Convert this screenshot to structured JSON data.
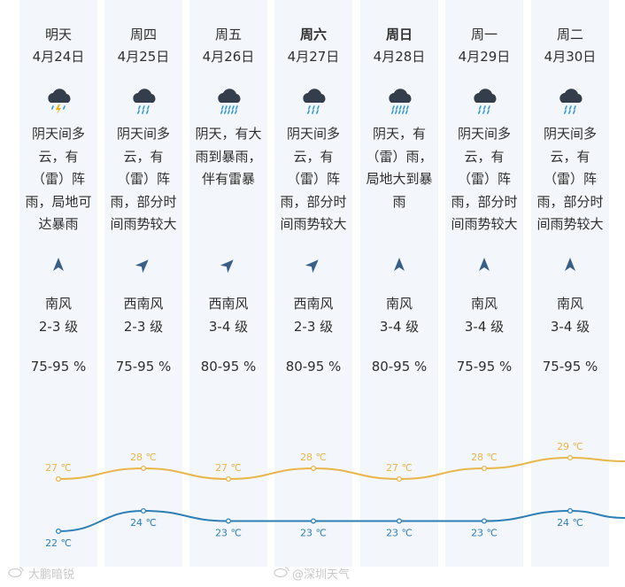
{
  "days": [
    {
      "day": "明天",
      "date": "4月24日",
      "bold": false,
      "icon": "thunder-rain-icon",
      "desc": [
        "阴天间多",
        "云，有",
        "（雷）阵",
        "雨，局地可",
        "达暴雨"
      ],
      "wind": "南风",
      "level": "2-3 级",
      "humidity": "75-95 %",
      "wind_dir": "south",
      "high": "27 ℃",
      "low": "22 ℃"
    },
    {
      "day": "周四",
      "date": "4月25日",
      "bold": false,
      "icon": "rain-icon",
      "desc": [
        "阴天间多",
        "云，有",
        "（雷）阵",
        "雨，部分时",
        "间雨势较大"
      ],
      "wind": "西南风",
      "level": "2-3 级",
      "humidity": "75-95 %",
      "wind_dir": "southwest",
      "high": "28 ℃",
      "low": "24 ℃"
    },
    {
      "day": "周五",
      "date": "4月26日",
      "bold": false,
      "icon": "heavy-rain-icon",
      "desc": [
        "阴天，有大",
        "雨到暴雨，",
        "伴有雷暴"
      ],
      "wind": "西南风",
      "level": "3-4 级",
      "humidity": "80-95 %",
      "wind_dir": "southwest",
      "high": "27 ℃",
      "low": "23 ℃"
    },
    {
      "day": "周六",
      "date": "4月27日",
      "bold": true,
      "icon": "rain-icon",
      "desc": [
        "阴天间多",
        "云，有",
        "（雷）阵",
        "雨，部分时",
        "间雨势较大"
      ],
      "wind": "西南风",
      "level": "2-3 级",
      "humidity": "80-95 %",
      "wind_dir": "southwest",
      "high": "28 ℃",
      "low": "23 ℃"
    },
    {
      "day": "周日",
      "date": "4月28日",
      "bold": true,
      "icon": "heavy-rain-icon",
      "desc": [
        "阴天，有",
        "（雷）雨，",
        "局地大到暴",
        "雨"
      ],
      "wind": "南风",
      "level": "3-4 级",
      "humidity": "80-95 %",
      "wind_dir": "south",
      "high": "27 ℃",
      "low": "23 ℃"
    },
    {
      "day": "周一",
      "date": "4月29日",
      "bold": false,
      "icon": "rain-icon",
      "desc": [
        "阴天间多",
        "云，有",
        "（雷）阵",
        "雨，部分时",
        "间雨势较大"
      ],
      "wind": "南风",
      "level": "3-4 级",
      "humidity": "75-95 %",
      "wind_dir": "south",
      "high": "28 ℃",
      "low": "23 ℃"
    },
    {
      "day": "周二",
      "date": "4月30日",
      "bold": false,
      "icon": "rain-icon",
      "desc": [
        "阴天间多",
        "云，有",
        "（雷）阵",
        "雨，部分时",
        "间雨势较大"
      ],
      "wind": "南风",
      "level": "3-4 级",
      "humidity": "75-95 %",
      "wind_dir": "south",
      "high": "29 ℃",
      "low": "24 ℃"
    }
  ],
  "high_values": [
    27,
    28,
    27,
    28,
    27,
    28,
    29
  ],
  "low_values": [
    22,
    24,
    23,
    23,
    23,
    23,
    24
  ],
  "colors": {
    "high": "#e8b64a",
    "low": "#2d7fb6",
    "column": "#f3f6fa",
    "arrow": "#3a5f86",
    "cloud": "#333d4c",
    "drop": "#2e9ad6"
  },
  "watermark": {
    "left": "大鹏暗锐",
    "right": "@深圳天气"
  }
}
